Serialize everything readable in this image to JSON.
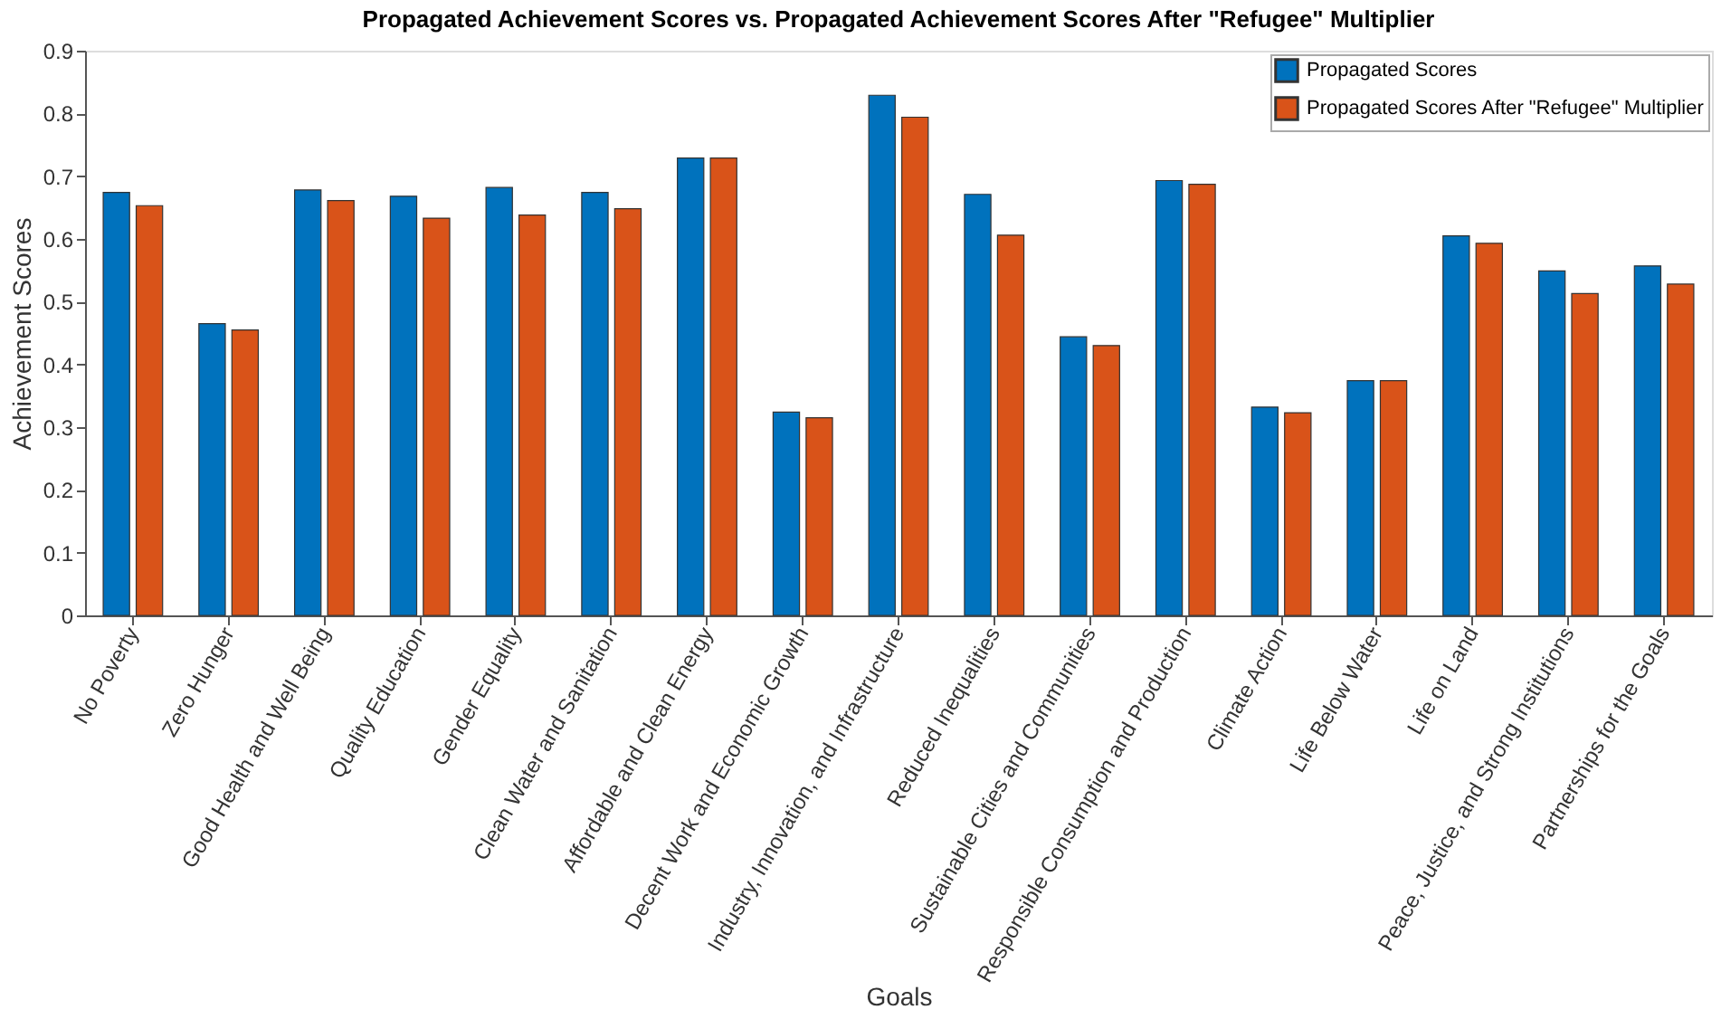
{
  "chart_data": {
    "type": "bar",
    "title": "Propagated Achievement Scores vs. Propagated Achievement Scores After \"Refugee\" Multiplier",
    "xlabel": "Goals",
    "ylabel": "Achievement Scores",
    "categories": [
      "No Poverty",
      "Zero Hunger",
      "Good Health and Well Being",
      "Quality Education",
      "Gender Equality",
      "Clean Water and Sanitation",
      "Affordable and Clean Energy",
      "Decent Work and Economic Growth",
      "Industry, Innovation, and Infrastructure",
      "Reduced Inequalities",
      "Sustainable Cities and Communities",
      "Responsible Consumption and Production",
      "Climate Action",
      "Life Below Water",
      "Life on Land",
      "Peace, Justice, and Strong Institutions",
      "Partnerships for the Goals"
    ],
    "series": [
      {
        "name": "Propagated Scores",
        "color": "#0072bd",
        "values": [
          0.674,
          0.465,
          0.678,
          0.668,
          0.682,
          0.674,
          0.729,
          0.324,
          0.829,
          0.671,
          0.444,
          0.693,
          0.332,
          0.374,
          0.605,
          0.549,
          0.557
        ]
      },
      {
        "name": "Propagated Scores After \"Refugee\" Multiplier",
        "color": "#d95319",
        "values": [
          0.653,
          0.455,
          0.661,
          0.633,
          0.638,
          0.648,
          0.729,
          0.315,
          0.794,
          0.606,
          0.43,
          0.687,
          0.323,
          0.374,
          0.593,
          0.513,
          0.528
        ]
      }
    ],
    "ylim": [
      0,
      0.9
    ],
    "yticks": [
      0,
      0.1,
      0.2,
      0.3,
      0.4,
      0.5,
      0.6,
      0.7,
      0.8,
      0.9
    ],
    "grid": false,
    "legend": "top right"
  }
}
